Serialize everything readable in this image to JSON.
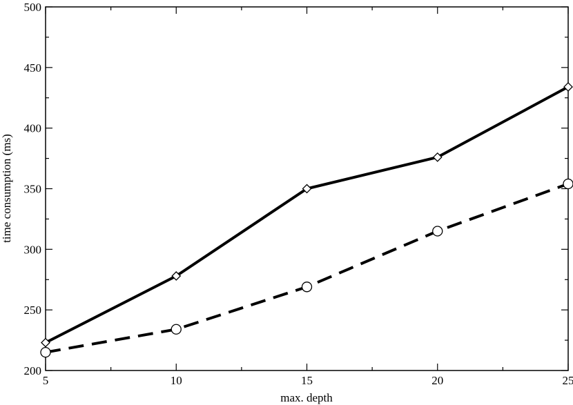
{
  "chart_data": {
    "type": "line",
    "title": "",
    "xlabel": "max. depth",
    "ylabel": "time consumption (ms)",
    "xlim": [
      5,
      25
    ],
    "ylim": [
      200,
      500
    ],
    "x_ticks": [
      5,
      10,
      15,
      20,
      25
    ],
    "y_ticks": [
      200,
      250,
      300,
      350,
      400,
      450,
      500
    ],
    "grid": false,
    "legend": "none",
    "series": [
      {
        "style": "solid",
        "marker": "diamond",
        "color": "#000000",
        "x": [
          5,
          10,
          15,
          20,
          25
        ],
        "y": [
          223,
          278,
          350,
          376,
          434
        ]
      },
      {
        "style": "dashed",
        "marker": "circle",
        "color": "#000000",
        "x": [
          5,
          10,
          15,
          20,
          25
        ],
        "y": [
          215,
          234,
          269,
          315,
          354
        ]
      }
    ]
  }
}
